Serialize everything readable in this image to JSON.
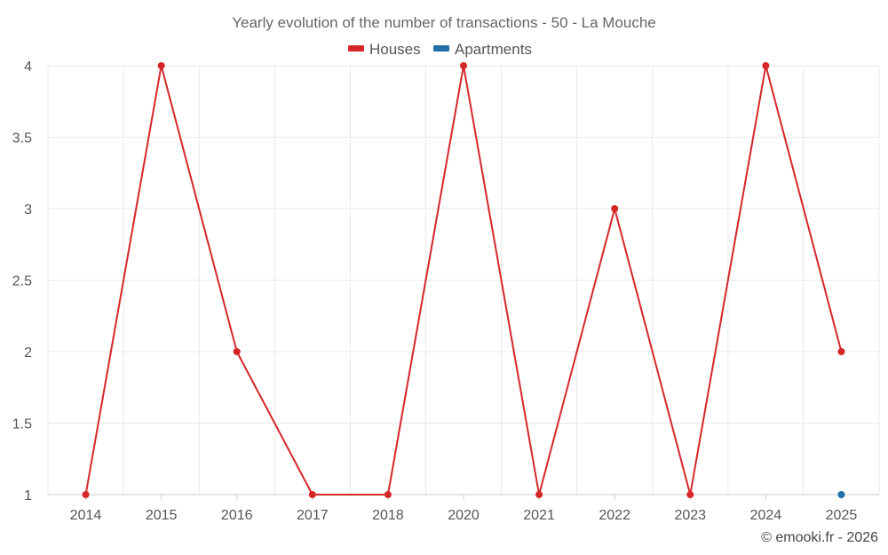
{
  "chart_data": {
    "type": "line",
    "title": "Yearly evolution of the number of transactions - 50 - La Mouche",
    "categories": [
      "2014",
      "2015",
      "2016",
      "2017",
      "2018",
      "2020",
      "2021",
      "2022",
      "2023",
      "2024",
      "2025"
    ],
    "series": [
      {
        "name": "Houses",
        "color": "#d62728",
        "values": [
          1,
          4,
          2,
          1,
          1,
          4,
          1,
          3,
          1,
          4,
          2
        ]
      },
      {
        "name": "Apartments",
        "color": "#1f6fa8",
        "values": [
          null,
          null,
          null,
          null,
          null,
          null,
          null,
          null,
          null,
          null,
          1
        ]
      }
    ],
    "yticks": [
      "1",
      "1.5",
      "2",
      "2.5",
      "3",
      "3.5",
      "4"
    ],
    "ylim": [
      1,
      4
    ],
    "grid": true,
    "legend_position": "top-center"
  },
  "credit": "© emooki.fr - 2026"
}
